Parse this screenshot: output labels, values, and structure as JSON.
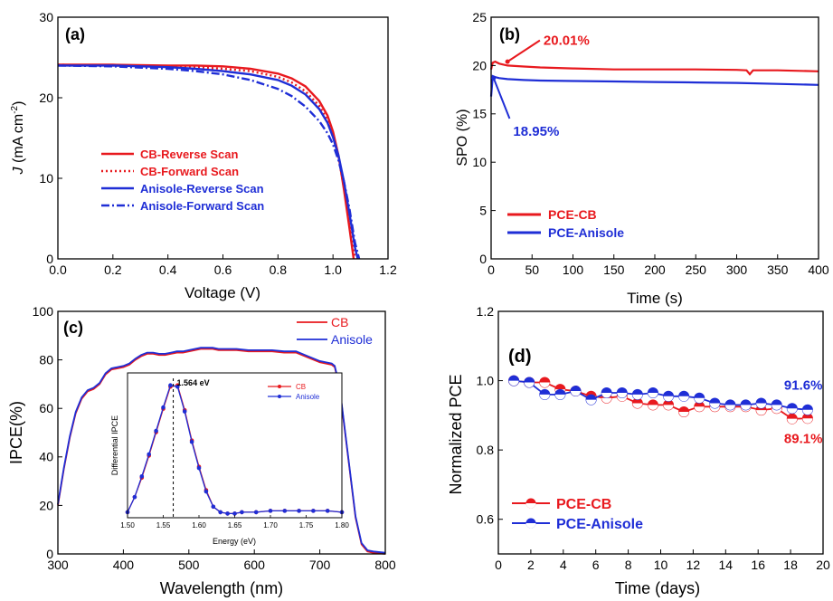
{
  "chart_data": [
    {
      "panel": "(a)",
      "type": "line",
      "xlabel": "Voltage (V)",
      "ylabel_main": "J",
      "ylabel_unit": "(mA cm",
      "ylabel_sup": "-2",
      "ylabel_close": ")",
      "xlim": [
        0.0,
        1.2
      ],
      "ylim": [
        0,
        30
      ],
      "xticks": [
        "0.0",
        "0.2",
        "0.4",
        "0.6",
        "0.8",
        "1.0",
        "1.2"
      ],
      "yticks": [
        "0",
        "10",
        "20",
        "30"
      ],
      "legend": "middle-left",
      "series": [
        {
          "name": "CB-Reverse Scan",
          "color": "#e8191e",
          "dash": "solid",
          "x": [
            0,
            0.2,
            0.4,
            0.5,
            0.6,
            0.7,
            0.8,
            0.85,
            0.9,
            0.95,
            0.98,
            1.0,
            1.02,
            1.04,
            1.06,
            1.075
          ],
          "y": [
            24.1,
            24.1,
            24.0,
            24.0,
            23.9,
            23.6,
            23.0,
            22.4,
            21.4,
            19.6,
            17.8,
            15.8,
            12.8,
            8.6,
            3.8,
            0
          ]
        },
        {
          "name": "CB-Forward Scan",
          "color": "#e8191e",
          "dash": "dot",
          "x": [
            0,
            0.2,
            0.4,
            0.5,
            0.6,
            0.7,
            0.8,
            0.85,
            0.9,
            0.95,
            0.98,
            1.0,
            1.02,
            1.04,
            1.06,
            1.08
          ],
          "y": [
            24.1,
            24.0,
            23.9,
            23.8,
            23.6,
            23.3,
            22.6,
            21.9,
            20.8,
            19.0,
            17.2,
            15.2,
            12.6,
            8.8,
            4.4,
            0
          ]
        },
        {
          "name": "Anisole-Reverse Scan",
          "color": "#1f2ed6",
          "dash": "solid",
          "x": [
            0,
            0.2,
            0.4,
            0.5,
            0.6,
            0.7,
            0.8,
            0.85,
            0.9,
            0.95,
            0.98,
            1.0,
            1.02,
            1.04,
            1.06,
            1.08,
            1.09
          ],
          "y": [
            24.0,
            24.0,
            23.8,
            23.6,
            23.3,
            22.9,
            22.2,
            21.5,
            20.4,
            18.6,
            16.9,
            15.1,
            12.8,
            9.6,
            5.6,
            1.4,
            0
          ]
        },
        {
          "name": "Anisole-Forward Scan",
          "color": "#1f2ed6",
          "dash": "dashdot",
          "x": [
            0,
            0.2,
            0.4,
            0.5,
            0.6,
            0.7,
            0.8,
            0.85,
            0.9,
            0.95,
            0.98,
            1.0,
            1.02,
            1.04,
            1.06,
            1.08,
            1.095
          ],
          "y": [
            24.0,
            23.9,
            23.6,
            23.3,
            22.9,
            22.2,
            21.1,
            20.2,
            18.9,
            17.1,
            15.6,
            14.2,
            12.2,
            9.6,
            6.2,
            2.0,
            0
          ]
        }
      ]
    },
    {
      "panel": "(b)",
      "type": "line",
      "xlabel": "Time (s)",
      "ylabel": "SPO (%)",
      "xlim": [
        0,
        400
      ],
      "ylim": [
        0,
        25
      ],
      "xticks": [
        "0",
        "50",
        "100",
        "150",
        "200",
        "250",
        "300",
        "350",
        "400"
      ],
      "yticks": [
        "0",
        "5",
        "10",
        "15",
        "20",
        "25"
      ],
      "legend": "bottom-left",
      "annotations": [
        {
          "text": "20.01%",
          "color": "#e8191e",
          "x": 20,
          "y": 20.4,
          "ax": 64,
          "ay": 22.6
        },
        {
          "text": "18.95%",
          "color": "#1f2ed6",
          "x": 3,
          "y": 18.7,
          "ax": 27,
          "ay": 13.2
        }
      ],
      "series": [
        {
          "name": "PCE-CB",
          "color": "#e8191e",
          "x": [
            0,
            2,
            5,
            10,
            20,
            40,
            60,
            100,
            150,
            200,
            250,
            300,
            312,
            316,
            320,
            350,
            400
          ],
          "y": [
            19.6,
            20.3,
            20.4,
            20.2,
            20.0,
            19.9,
            19.8,
            19.7,
            19.6,
            19.6,
            19.6,
            19.55,
            19.5,
            19.1,
            19.5,
            19.5,
            19.4
          ]
        },
        {
          "name": "PCE-Anisole",
          "color": "#1f2ed6",
          "x": [
            0,
            2,
            5,
            10,
            20,
            40,
            60,
            100,
            150,
            200,
            250,
            300,
            350,
            400
          ],
          "y": [
            16.8,
            18.9,
            18.8,
            18.7,
            18.6,
            18.5,
            18.45,
            18.4,
            18.35,
            18.3,
            18.25,
            18.2,
            18.1,
            18.0
          ]
        }
      ]
    },
    {
      "panel": "(c)",
      "type": "line",
      "xlabel": "Wavelength (nm)",
      "ylabel": "IPCE(%)",
      "xlim": [
        300,
        850
      ],
      "ylim": [
        0,
        100
      ],
      "xticks": [
        "300",
        "400",
        "500",
        "600",
        "700",
        "800"
      ],
      "yticks": [
        "0",
        "20",
        "40",
        "60",
        "80",
        "100"
      ],
      "legend": "top-right",
      "series": [
        {
          "name": "CB",
          "color": "#e8191e",
          "x": [
            300,
            310,
            320,
            330,
            340,
            350,
            360,
            370,
            380,
            390,
            400,
            410,
            420,
            430,
            440,
            450,
            460,
            470,
            480,
            490,
            500,
            510,
            520,
            530,
            540,
            550,
            560,
            570,
            580,
            600,
            620,
            640,
            660,
            680,
            700,
            720,
            740,
            750,
            760,
            765,
            770,
            775,
            780,
            790,
            800,
            810,
            820,
            830,
            850
          ],
          "y": [
            20,
            35,
            48,
            58,
            64,
            67,
            68,
            70,
            74,
            76,
            76.5,
            77,
            78,
            80,
            81.5,
            82.5,
            82.5,
            82,
            82,
            82.5,
            83,
            83,
            83.5,
            84,
            84.5,
            84.5,
            84.5,
            84,
            84,
            84,
            83.5,
            83.5,
            83.5,
            83,
            83,
            81,
            79,
            78.5,
            78,
            77,
            72,
            65,
            55,
            35,
            15,
            4,
            1,
            0.5,
            0
          ]
        },
        {
          "name": "Anisole",
          "color": "#1f2ed6",
          "x": [
            300,
            310,
            320,
            330,
            340,
            350,
            360,
            370,
            380,
            390,
            400,
            410,
            420,
            430,
            440,
            450,
            460,
            470,
            480,
            490,
            500,
            510,
            520,
            530,
            540,
            550,
            560,
            570,
            580,
            600,
            620,
            640,
            660,
            680,
            700,
            720,
            740,
            750,
            760,
            765,
            770,
            775,
            780,
            790,
            800,
            810,
            820,
            830,
            850
          ],
          "y": [
            20.5,
            35.5,
            48.5,
            58.5,
            64.5,
            67.5,
            68.5,
            70.5,
            74.5,
            76.5,
            77,
            77.5,
            78.5,
            80.5,
            82,
            83,
            83,
            82.5,
            82.5,
            83,
            83.5,
            83.5,
            84,
            84.5,
            85,
            85,
            85,
            84.5,
            84.5,
            84.5,
            84,
            84,
            84,
            83.5,
            83.5,
            81.5,
            79.5,
            79,
            78.5,
            77.5,
            72.5,
            65.5,
            55.5,
            35.5,
            15.5,
            4.5,
            1.5,
            1,
            0.5
          ]
        }
      ],
      "inset": {
        "type": "line",
        "xlabel": "Energy (eV)",
        "ylabel": "Differential IPCE",
        "xlim": [
          1.5,
          1.8
        ],
        "ylim": [
          0,
          1.05
        ],
        "xticks": [
          "1.50",
          "1.55",
          "1.60",
          "1.65",
          "1.70",
          "1.75",
          "1.80"
        ],
        "annotation": "1.564 eV",
        "peak_x": 1.564,
        "legend": "top-right",
        "series": [
          {
            "name": "CB",
            "color": "#e8191e",
            "x": [
              1.5,
              1.51,
              1.52,
              1.53,
              1.54,
              1.55,
              1.56,
              1.57,
              1.58,
              1.59,
              1.6,
              1.61,
              1.62,
              1.63,
              1.64,
              1.65,
              1.66,
              1.68,
              1.7,
              1.72,
              1.74,
              1.76,
              1.78,
              1.8
            ],
            "y": [
              0.04,
              0.15,
              0.29,
              0.45,
              0.62,
              0.79,
              0.95,
              0.96,
              0.78,
              0.56,
              0.37,
              0.2,
              0.08,
              0.04,
              0.03,
              0.03,
              0.04,
              0.04,
              0.05,
              0.05,
              0.05,
              0.05,
              0.05,
              0.04
            ]
          },
          {
            "name": "Anisole",
            "color": "#1f2ed6",
            "x": [
              1.5,
              1.51,
              1.52,
              1.53,
              1.54,
              1.55,
              1.56,
              1.57,
              1.58,
              1.59,
              1.6,
              1.61,
              1.62,
              1.63,
              1.64,
              1.65,
              1.66,
              1.68,
              1.7,
              1.72,
              1.74,
              1.76,
              1.78,
              1.8
            ],
            "y": [
              0.04,
              0.15,
              0.3,
              0.46,
              0.63,
              0.8,
              0.96,
              0.95,
              0.77,
              0.55,
              0.36,
              0.19,
              0.08,
              0.04,
              0.03,
              0.03,
              0.04,
              0.04,
              0.05,
              0.05,
              0.05,
              0.05,
              0.05,
              0.04
            ]
          }
        ]
      }
    },
    {
      "panel": "(d)",
      "type": "line",
      "xlabel": "Time (days)",
      "ylabel": "Normalized PCE",
      "xlim": [
        0,
        21
      ],
      "ylim": [
        0.5,
        1.2
      ],
      "xticks": [
        "0",
        "2",
        "4",
        "6",
        "8",
        "10",
        "12",
        "14",
        "16",
        "18",
        "20"
      ],
      "yticks": [
        "0.6",
        "0.8",
        "1.0",
        "1.2"
      ],
      "legend": "bottom-left",
      "annotations": [
        {
          "text": "91.6%",
          "color": "#1f2ed6",
          "x": 20.5,
          "y": 0.99
        },
        {
          "text": "89.1%",
          "color": "#e8191e",
          "x": 20.5,
          "y": 0.835
        }
      ],
      "series": [
        {
          "name": "PCE-CB",
          "color": "#e8191e",
          "x": [
            1,
            2,
            3,
            4,
            5,
            6,
            7,
            8,
            9,
            10,
            11,
            12,
            13,
            14,
            15,
            16,
            17,
            18,
            19,
            20
          ],
          "y": [
            1.0,
            0.995,
            0.995,
            0.975,
            0.97,
            0.955,
            0.95,
            0.955,
            0.935,
            0.93,
            0.93,
            0.91,
            0.925,
            0.925,
            0.925,
            0.925,
            0.915,
            0.92,
            0.89,
            0.891
          ]
        },
        {
          "name": "PCE-Anisole",
          "color": "#1f2ed6",
          "x": [
            1,
            2,
            3,
            4,
            5,
            6,
            7,
            8,
            9,
            10,
            11,
            12,
            13,
            14,
            15,
            16,
            17,
            18,
            19,
            20
          ],
          "y": [
            1.0,
            0.995,
            0.96,
            0.96,
            0.97,
            0.945,
            0.965,
            0.965,
            0.96,
            0.965,
            0.955,
            0.955,
            0.95,
            0.935,
            0.93,
            0.93,
            0.935,
            0.93,
            0.92,
            0.916
          ]
        }
      ]
    }
  ]
}
